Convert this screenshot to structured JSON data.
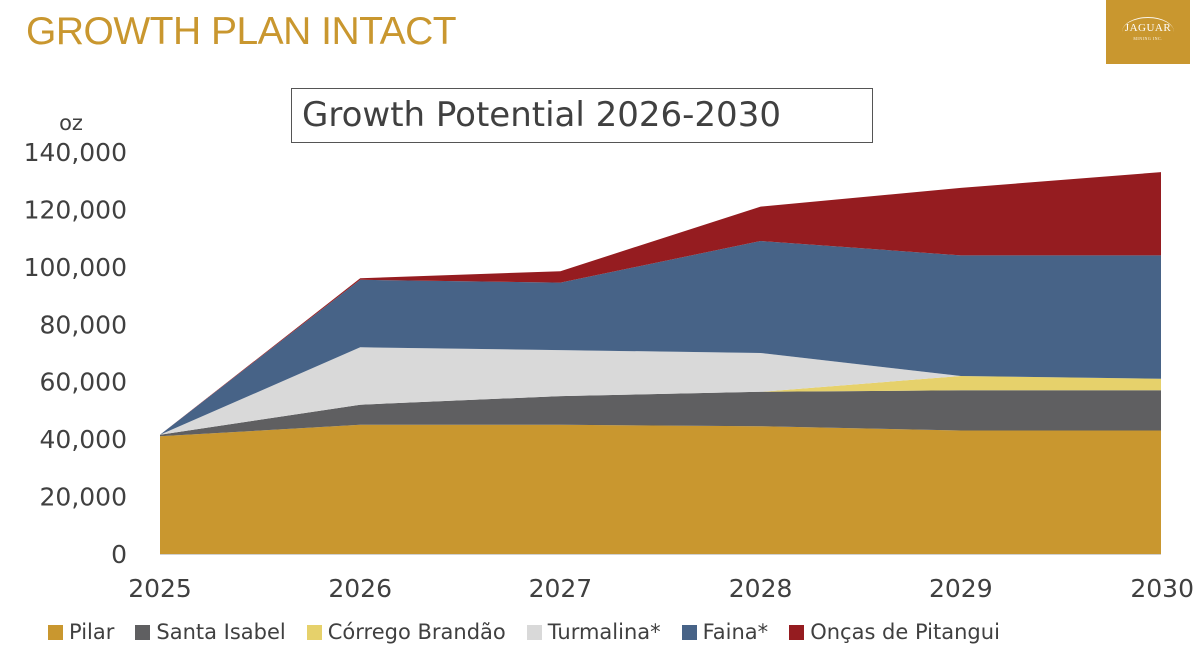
{
  "slide": {
    "title": "GROWTH PLAN INTACT"
  },
  "logo": {
    "name": "JAGUAR",
    "sub": "MINING INC."
  },
  "chart_data": {
    "type": "area",
    "stacked": true,
    "title": "Growth Potential 2026-2030",
    "ylabel": "oz",
    "x": [
      "2025",
      "2026",
      "2027",
      "2028",
      "2029",
      "2030"
    ],
    "ylim": [
      0,
      140000
    ],
    "yticks": [
      0,
      20000,
      40000,
      60000,
      80000,
      100000,
      120000,
      140000
    ],
    "ytick_labels": [
      "0",
      "20,000",
      "40,000",
      "60,000",
      "80,000",
      "100,000",
      "120,000",
      "140,000"
    ],
    "grid": false,
    "legend_position": "bottom",
    "series": [
      {
        "name": "Pilar",
        "color": "#C9972F",
        "values": [
          41000,
          45000,
          45000,
          44500,
          43000,
          43000
        ]
      },
      {
        "name": "Santa Isabel",
        "color": "#5F5F61",
        "values": [
          500,
          7000,
          10000,
          12000,
          14000,
          14000
        ]
      },
      {
        "name": "Córrego Brandão",
        "color": "#E6D16B",
        "values": [
          0,
          0,
          0,
          0,
          5000,
          4000
        ]
      },
      {
        "name": "Turmalina*",
        "color": "#D9D9D9",
        "values": [
          0,
          20000,
          16000,
          13500,
          0,
          0
        ]
      },
      {
        "name": "Faina*",
        "color": "#476387",
        "values": [
          0,
          23500,
          23500,
          39000,
          42000,
          43000
        ]
      },
      {
        "name": "Onças de Pitangui",
        "color": "#951C20",
        "values": [
          0,
          500,
          4000,
          12000,
          23500,
          29000
        ]
      }
    ]
  }
}
